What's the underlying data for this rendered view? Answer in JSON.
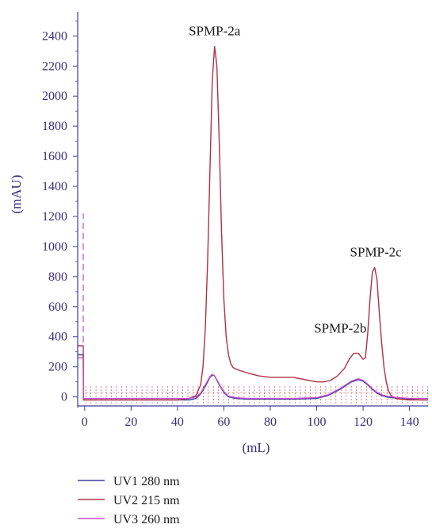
{
  "chart_data": {
    "type": "line",
    "title": "",
    "xlabel": "(mL)",
    "ylabel": "(mAU)",
    "xlim": [
      -3,
      148
    ],
    "ylim": [
      -60,
      2560
    ],
    "x_ticks": [
      0,
      20,
      40,
      60,
      80,
      100,
      120,
      140
    ],
    "y_ticks": [
      0,
      200,
      400,
      600,
      800,
      1000,
      1200,
      1400,
      1600,
      1800,
      2000,
      2200,
      2400
    ],
    "grid": false,
    "legend_position": "bottom-left",
    "annotations": [
      {
        "text": "SPMP-2a",
        "x": 56,
        "y": 2330
      },
      {
        "text": "SPMP-2b",
        "x": 117,
        "y": 295
      },
      {
        "text": "SPMP-2c",
        "x": 125.5,
        "y": 860
      }
    ],
    "fractions": {
      "x_start": 0.5,
      "x_end": 148,
      "step": 2.2,
      "y": 40
    },
    "series": [
      {
        "name": "UV1 280 nm",
        "color": "#3b3ba0",
        "x": [
          -3,
          -0.6,
          -0.5,
          0,
          10,
          20,
          30,
          40,
          45,
          48,
          50,
          52,
          54,
          55,
          56,
          58,
          60,
          62,
          65,
          70,
          80,
          90,
          100,
          105,
          110,
          115,
          118,
          120,
          122,
          124,
          126,
          128,
          130,
          135,
          140,
          145,
          148
        ],
        "y": [
          280,
          280,
          -20,
          -20,
          -20,
          -20,
          -20,
          -20,
          -20,
          -10,
          20,
          70,
          130,
          145,
          140,
          80,
          30,
          0,
          -10,
          -15,
          -15,
          -15,
          -10,
          10,
          50,
          100,
          115,
          105,
          80,
          50,
          25,
          10,
          0,
          -10,
          -15,
          -20,
          -20
        ]
      },
      {
        "name": "UV2 215 nm",
        "color": "#b03045",
        "x": [
          -3,
          -0.6,
          -0.5,
          0,
          10,
          20,
          30,
          40,
          45,
          48,
          50,
          51,
          52,
          53,
          54,
          55,
          56,
          57,
          58,
          59,
          60,
          61,
          62,
          63,
          64,
          66,
          70,
          75,
          80,
          85,
          90,
          95,
          100,
          103,
          106,
          109,
          112,
          114,
          116,
          118,
          120,
          121,
          122,
          123,
          124,
          125,
          126,
          127,
          128,
          129,
          130,
          131,
          132,
          134,
          136,
          140,
          145,
          148
        ],
        "y": [
          340,
          340,
          -20,
          -20,
          -20,
          -20,
          -20,
          -20,
          -10,
          10,
          80,
          200,
          450,
          900,
          1500,
          2100,
          2330,
          2200,
          1700,
          1100,
          650,
          400,
          280,
          220,
          195,
          180,
          160,
          140,
          130,
          130,
          130,
          115,
          100,
          100,
          110,
          140,
          190,
          250,
          290,
          290,
          250,
          260,
          420,
          650,
          830,
          860,
          780,
          560,
          360,
          200,
          100,
          40,
          10,
          -10,
          -15,
          -20,
          -20,
          -20
        ]
      },
      {
        "name": "UV3 260 nm",
        "color": "#c04ec9",
        "x": [
          -3,
          -0.6,
          -0.5,
          0,
          10,
          20,
          30,
          40,
          45,
          48,
          50,
          52,
          54,
          55,
          56,
          58,
          60,
          62,
          65,
          70,
          80,
          90,
          100,
          105,
          110,
          115,
          118,
          120,
          122,
          124,
          126,
          128,
          130,
          135,
          140,
          145,
          148
        ],
        "y": [
          260,
          260,
          -10,
          -10,
          -10,
          -10,
          -10,
          -10,
          -10,
          0,
          25,
          80,
          135,
          150,
          140,
          85,
          35,
          5,
          -5,
          -10,
          -10,
          -10,
          -5,
          15,
          55,
          105,
          120,
          110,
          85,
          55,
          30,
          15,
          5,
          -5,
          -10,
          -10,
          -10
        ]
      },
      {
        "name": "",
        "color": "#c04ec9",
        "dashed": true,
        "x": [
          -0.6,
          -0.6
        ],
        "y": [
          20,
          1220
        ]
      }
    ]
  }
}
